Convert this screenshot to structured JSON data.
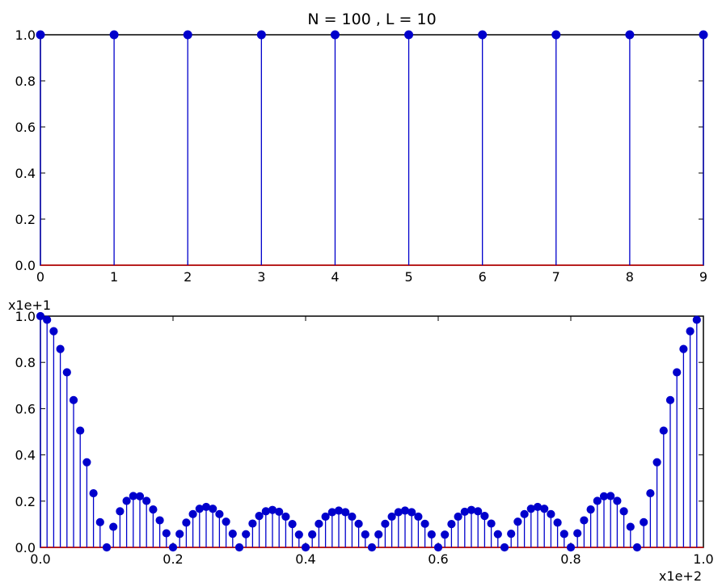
{
  "chart_data": [
    {
      "type": "stem",
      "title": "N = 100 , L = 10",
      "xlim": [
        0,
        9
      ],
      "ylim": [
        0,
        1.0
      ],
      "xticks": [
        "0",
        "1",
        "2",
        "3",
        "4",
        "5",
        "6",
        "7",
        "8",
        "9"
      ],
      "yticks": [
        "0.0",
        "0.2",
        "0.4",
        "0.6",
        "0.8",
        "1.0"
      ],
      "x": [
        0,
        1,
        2,
        3,
        4,
        5,
        6,
        7,
        8,
        9
      ],
      "values": [
        1,
        1,
        1,
        1,
        1,
        1,
        1,
        1,
        1,
        1
      ],
      "color": "#0000cc"
    },
    {
      "type": "stem",
      "title": "",
      "xlim": [
        0,
        1.0
      ],
      "ylim": [
        0,
        1.0
      ],
      "x_offset_label": "x1e+2",
      "y_offset_label": "x1e+1",
      "xticks": [
        "0.0",
        "0.2",
        "0.4",
        "0.6",
        "0.8",
        "1.0"
      ],
      "yticks": [
        "0.0",
        "0.2",
        "0.4",
        "0.6",
        "0.8",
        "1.0"
      ],
      "x": [
        0.0,
        0.01,
        0.02,
        0.03,
        0.04,
        0.05,
        0.06,
        0.07,
        0.08,
        0.09,
        0.1,
        0.11,
        0.12,
        0.13,
        0.14,
        0.15,
        0.16,
        0.17,
        0.18,
        0.19,
        0.2,
        0.21,
        0.22,
        0.23,
        0.24,
        0.25,
        0.26,
        0.27,
        0.28,
        0.29,
        0.3,
        0.31,
        0.32,
        0.33,
        0.34,
        0.35,
        0.36,
        0.37,
        0.38,
        0.39,
        0.4,
        0.41,
        0.42,
        0.43,
        0.44,
        0.45,
        0.46,
        0.47,
        0.48,
        0.49,
        0.5,
        0.51,
        0.52,
        0.53,
        0.54,
        0.55,
        0.56,
        0.57,
        0.58,
        0.59,
        0.6,
        0.61,
        0.62,
        0.63,
        0.64,
        0.65,
        0.66,
        0.67,
        0.68,
        0.69,
        0.7,
        0.71,
        0.72,
        0.73,
        0.74,
        0.75,
        0.76,
        0.77,
        0.78,
        0.79,
        0.8,
        0.81,
        0.82,
        0.83,
        0.84,
        0.85,
        0.86,
        0.87,
        0.88,
        0.89,
        0.9,
        0.91,
        0.92,
        0.93,
        0.94,
        0.95,
        0.96,
        0.97,
        0.98,
        0.99
      ],
      "values": [
        1.0,
        0.984,
        0.935,
        0.858,
        0.757,
        0.637,
        0.505,
        0.368,
        0.234,
        0.109,
        0.0,
        0.089,
        0.156,
        0.201,
        0.222,
        0.221,
        0.201,
        0.164,
        0.117,
        0.061,
        0.0,
        0.058,
        0.107,
        0.144,
        0.167,
        0.175,
        0.167,
        0.144,
        0.111,
        0.059,
        0.0,
        0.057,
        0.103,
        0.136,
        0.156,
        0.162,
        0.154,
        0.133,
        0.101,
        0.055,
        0.0,
        0.056,
        0.102,
        0.133,
        0.152,
        0.159,
        0.152,
        0.133,
        0.102,
        0.056,
        0.0,
        0.056,
        0.102,
        0.133,
        0.152,
        0.159,
        0.152,
        0.133,
        0.102,
        0.056,
        0.0,
        0.055,
        0.101,
        0.133,
        0.154,
        0.162,
        0.156,
        0.136,
        0.103,
        0.057,
        0.0,
        0.059,
        0.111,
        0.144,
        0.167,
        0.175,
        0.167,
        0.144,
        0.107,
        0.058,
        0.0,
        0.061,
        0.117,
        0.164,
        0.201,
        0.221,
        0.222,
        0.201,
        0.156,
        0.089,
        0.0,
        0.109,
        0.234,
        0.368,
        0.505,
        0.637,
        0.757,
        0.858,
        0.935,
        0.984
      ],
      "color": "#0000cc"
    }
  ]
}
